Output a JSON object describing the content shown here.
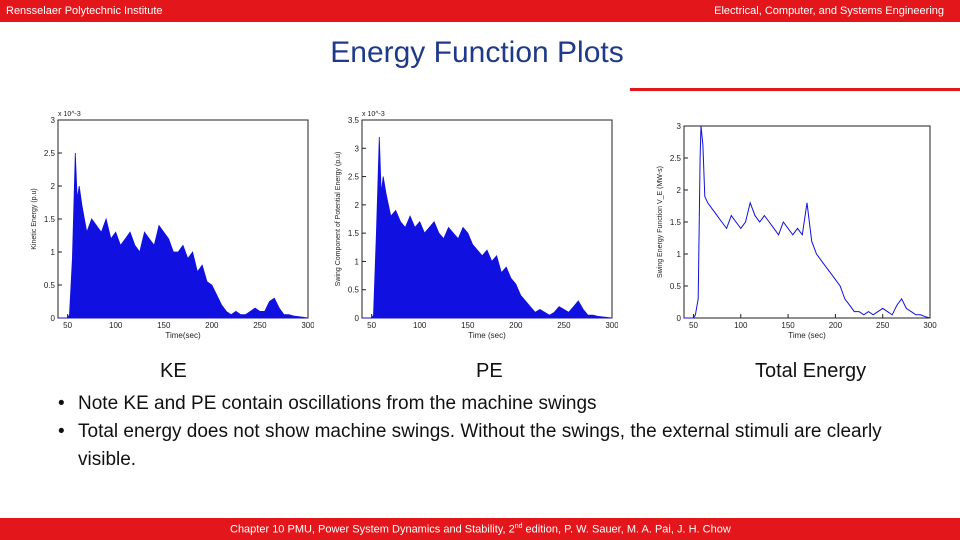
{
  "header": {
    "left": "Rensselaer Polytechnic Institute",
    "right": "Electrical, Computer, and Systems Engineering"
  },
  "slide": {
    "title": "Energy Function Plots",
    "captions": [
      "KE",
      "PE",
      "Total Energy"
    ],
    "bullets": [
      "Note KE and PE contain oscillations from the machine swings",
      "Total energy does not show machine swings.  Without the swings, the external stimuli are clearly visible."
    ]
  },
  "footer": {
    "text_before": "Chapter 10 PMU, Power System Dynamics and Stability, 2",
    "sup": "nd",
    "text_after": " edition, P. W. Sauer, M. A. Pai, J. H. Chow"
  },
  "colors": {
    "accent": "#e3161b",
    "title": "#1f3a8a",
    "series": "#1010e0"
  },
  "chart_data": [
    {
      "type": "area",
      "ylabel": "Kinetic Energy (p.u)",
      "xlabel": "Time(sec)",
      "y_multiplier": "x 10^-3",
      "xlim": [
        40,
        300
      ],
      "ylim": [
        0,
        3
      ],
      "xticks": [
        50,
        100,
        150,
        200,
        250,
        300
      ],
      "yticks": [
        0,
        0.5,
        1,
        1.5,
        2,
        2.5,
        3
      ],
      "x": [
        40,
        50,
        52,
        55,
        58,
        60,
        62,
        65,
        70,
        75,
        80,
        85,
        90,
        95,
        100,
        105,
        110,
        115,
        120,
        125,
        130,
        135,
        140,
        145,
        150,
        155,
        160,
        165,
        170,
        175,
        180,
        185,
        190,
        195,
        200,
        205,
        210,
        215,
        220,
        225,
        230,
        235,
        240,
        245,
        250,
        255,
        260,
        265,
        270,
        275,
        280,
        285,
        290,
        295,
        300
      ],
      "y": [
        0,
        0,
        0.05,
        0.9,
        2.5,
        1.8,
        2.0,
        1.7,
        1.3,
        1.5,
        1.4,
        1.3,
        1.5,
        1.2,
        1.3,
        1.1,
        1.2,
        1.3,
        1.1,
        1.0,
        1.3,
        1.2,
        1.1,
        1.4,
        1.3,
        1.2,
        1.0,
        1.0,
        1.1,
        0.9,
        1.0,
        0.7,
        0.8,
        0.55,
        0.5,
        0.35,
        0.2,
        0.1,
        0.05,
        0.1,
        0.05,
        0.05,
        0.1,
        0.15,
        0.1,
        0.1,
        0.25,
        0.3,
        0.15,
        0.05,
        0.05,
        0.03,
        0.02,
        0.01,
        0
      ]
    },
    {
      "type": "area",
      "ylabel": "Swing Component of Potential Energy (p.u)",
      "xlabel": "Time (sec)",
      "y_multiplier": "x 10^-3",
      "xlim": [
        40,
        300
      ],
      "ylim": [
        0,
        3.5
      ],
      "xticks": [
        50,
        100,
        150,
        200,
        250,
        300
      ],
      "yticks": [
        0,
        0.5,
        1,
        1.5,
        2,
        2.5,
        3,
        3.5
      ],
      "x": [
        40,
        50,
        52,
        55,
        58,
        60,
        62,
        65,
        70,
        75,
        80,
        85,
        90,
        95,
        100,
        105,
        110,
        115,
        120,
        125,
        130,
        135,
        140,
        145,
        150,
        155,
        160,
        165,
        170,
        175,
        180,
        185,
        190,
        195,
        200,
        205,
        210,
        215,
        220,
        225,
        230,
        235,
        240,
        245,
        250,
        255,
        260,
        265,
        270,
        275,
        280,
        285,
        290,
        295,
        300
      ],
      "y": [
        0,
        0,
        0.05,
        1.5,
        3.2,
        2.2,
        2.5,
        2.2,
        1.8,
        1.9,
        1.7,
        1.6,
        1.8,
        1.6,
        1.7,
        1.5,
        1.6,
        1.7,
        1.5,
        1.4,
        1.6,
        1.5,
        1.4,
        1.6,
        1.5,
        1.3,
        1.2,
        1.1,
        1.2,
        1.0,
        1.1,
        0.8,
        0.9,
        0.7,
        0.6,
        0.4,
        0.3,
        0.2,
        0.1,
        0.15,
        0.1,
        0.05,
        0.1,
        0.2,
        0.15,
        0.1,
        0.2,
        0.3,
        0.15,
        0.05,
        0.05,
        0.03,
        0.02,
        0.01,
        0
      ]
    },
    {
      "type": "line",
      "ylabel": "Swing Energy Function V_E (MW-s)",
      "xlabel": "Time (sec)",
      "xlim": [
        40,
        300
      ],
      "ylim": [
        0,
        3
      ],
      "xticks": [
        50,
        100,
        150,
        200,
        250,
        300
      ],
      "yticks": [
        0,
        0.5,
        1,
        1.5,
        2,
        2.5,
        3
      ],
      "x": [
        40,
        50,
        52,
        55,
        57,
        58,
        60,
        62,
        65,
        70,
        75,
        80,
        85,
        90,
        95,
        100,
        105,
        110,
        115,
        120,
        125,
        130,
        135,
        140,
        145,
        150,
        155,
        160,
        165,
        170,
        175,
        180,
        185,
        190,
        195,
        200,
        205,
        210,
        215,
        220,
        225,
        230,
        235,
        240,
        245,
        250,
        255,
        260,
        265,
        270,
        275,
        280,
        285,
        290,
        295,
        300
      ],
      "y": [
        0,
        0,
        0.05,
        0.3,
        2.5,
        3.0,
        2.7,
        1.9,
        1.8,
        1.7,
        1.6,
        1.5,
        1.4,
        1.6,
        1.5,
        1.4,
        1.5,
        1.8,
        1.6,
        1.5,
        1.6,
        1.5,
        1.4,
        1.3,
        1.5,
        1.4,
        1.3,
        1.4,
        1.3,
        1.8,
        1.2,
        1.0,
        0.9,
        0.8,
        0.7,
        0.6,
        0.5,
        0.3,
        0.2,
        0.1,
        0.1,
        0.05,
        0.1,
        0.05,
        0.1,
        0.15,
        0.1,
        0.05,
        0.2,
        0.3,
        0.15,
        0.1,
        0.05,
        0.05,
        0.02,
        0
      ]
    }
  ]
}
